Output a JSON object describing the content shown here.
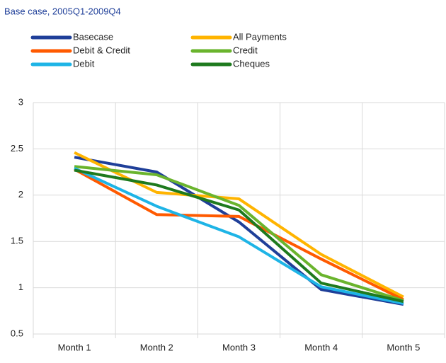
{
  "chart_data": {
    "type": "line",
    "title": "Base case, 2005Q1-2009Q4",
    "categories": [
      "Month 1",
      "Month 2",
      "Month 3",
      "Month 4",
      "Month 5"
    ],
    "series": [
      {
        "name": "Basecase",
        "color": "#1f3f99",
        "values": [
          2.41,
          2.25,
          1.71,
          0.98,
          0.82
        ]
      },
      {
        "name": "All Payments",
        "color": "#ffb400",
        "values": [
          2.46,
          2.03,
          1.96,
          1.36,
          0.9
        ]
      },
      {
        "name": "Debit & Credit",
        "color": "#ff5a00",
        "values": [
          2.28,
          1.79,
          1.77,
          1.31,
          0.87
        ]
      },
      {
        "name": "Credit",
        "color": "#6ab42d",
        "values": [
          2.31,
          2.22,
          1.89,
          1.14,
          0.86
        ]
      },
      {
        "name": "Debit",
        "color": "#1eb4e6",
        "values": [
          2.29,
          1.88,
          1.55,
          1.01,
          0.83
        ]
      },
      {
        "name": "Cheques",
        "color": "#1e7a1e",
        "values": [
          2.27,
          2.11,
          1.84,
          1.05,
          0.85
        ]
      }
    ],
    "ylim": [
      0.5,
      3
    ],
    "yticks": [
      0.5,
      1,
      1.5,
      2,
      2.5,
      3
    ],
    "grid": true
  }
}
